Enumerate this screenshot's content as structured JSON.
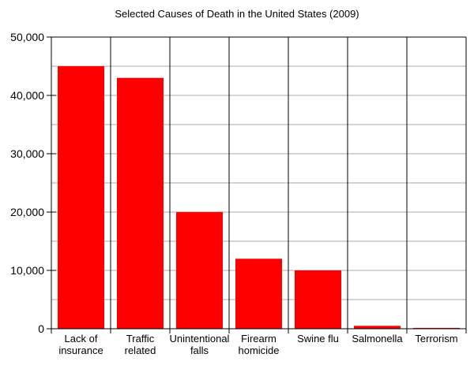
{
  "chart_data": {
    "type": "bar",
    "title": "Selected Causes of Death in the United States (2009)",
    "xlabel": "",
    "ylabel": "",
    "ylim": [
      0,
      50000
    ],
    "yticks": [
      0,
      10000,
      20000,
      30000,
      40000,
      50000
    ],
    "ytick_labels": [
      "0",
      "10,000",
      "20,000",
      "30,000",
      "40,000",
      "50,000"
    ],
    "grid": true,
    "grid_step": 5000,
    "categories": [
      [
        "Lack of",
        "insurance"
      ],
      [
        "Traffic",
        "related"
      ],
      [
        "Unintentional",
        "falls"
      ],
      [
        "Firearm",
        "homicide"
      ],
      [
        "Swine flu"
      ],
      [
        "Salmonella"
      ],
      [
        "Terrorism"
      ]
    ],
    "values": [
      45000,
      43000,
      20000,
      12000,
      10000,
      500,
      150
    ],
    "bar_color": "#ff0000"
  }
}
